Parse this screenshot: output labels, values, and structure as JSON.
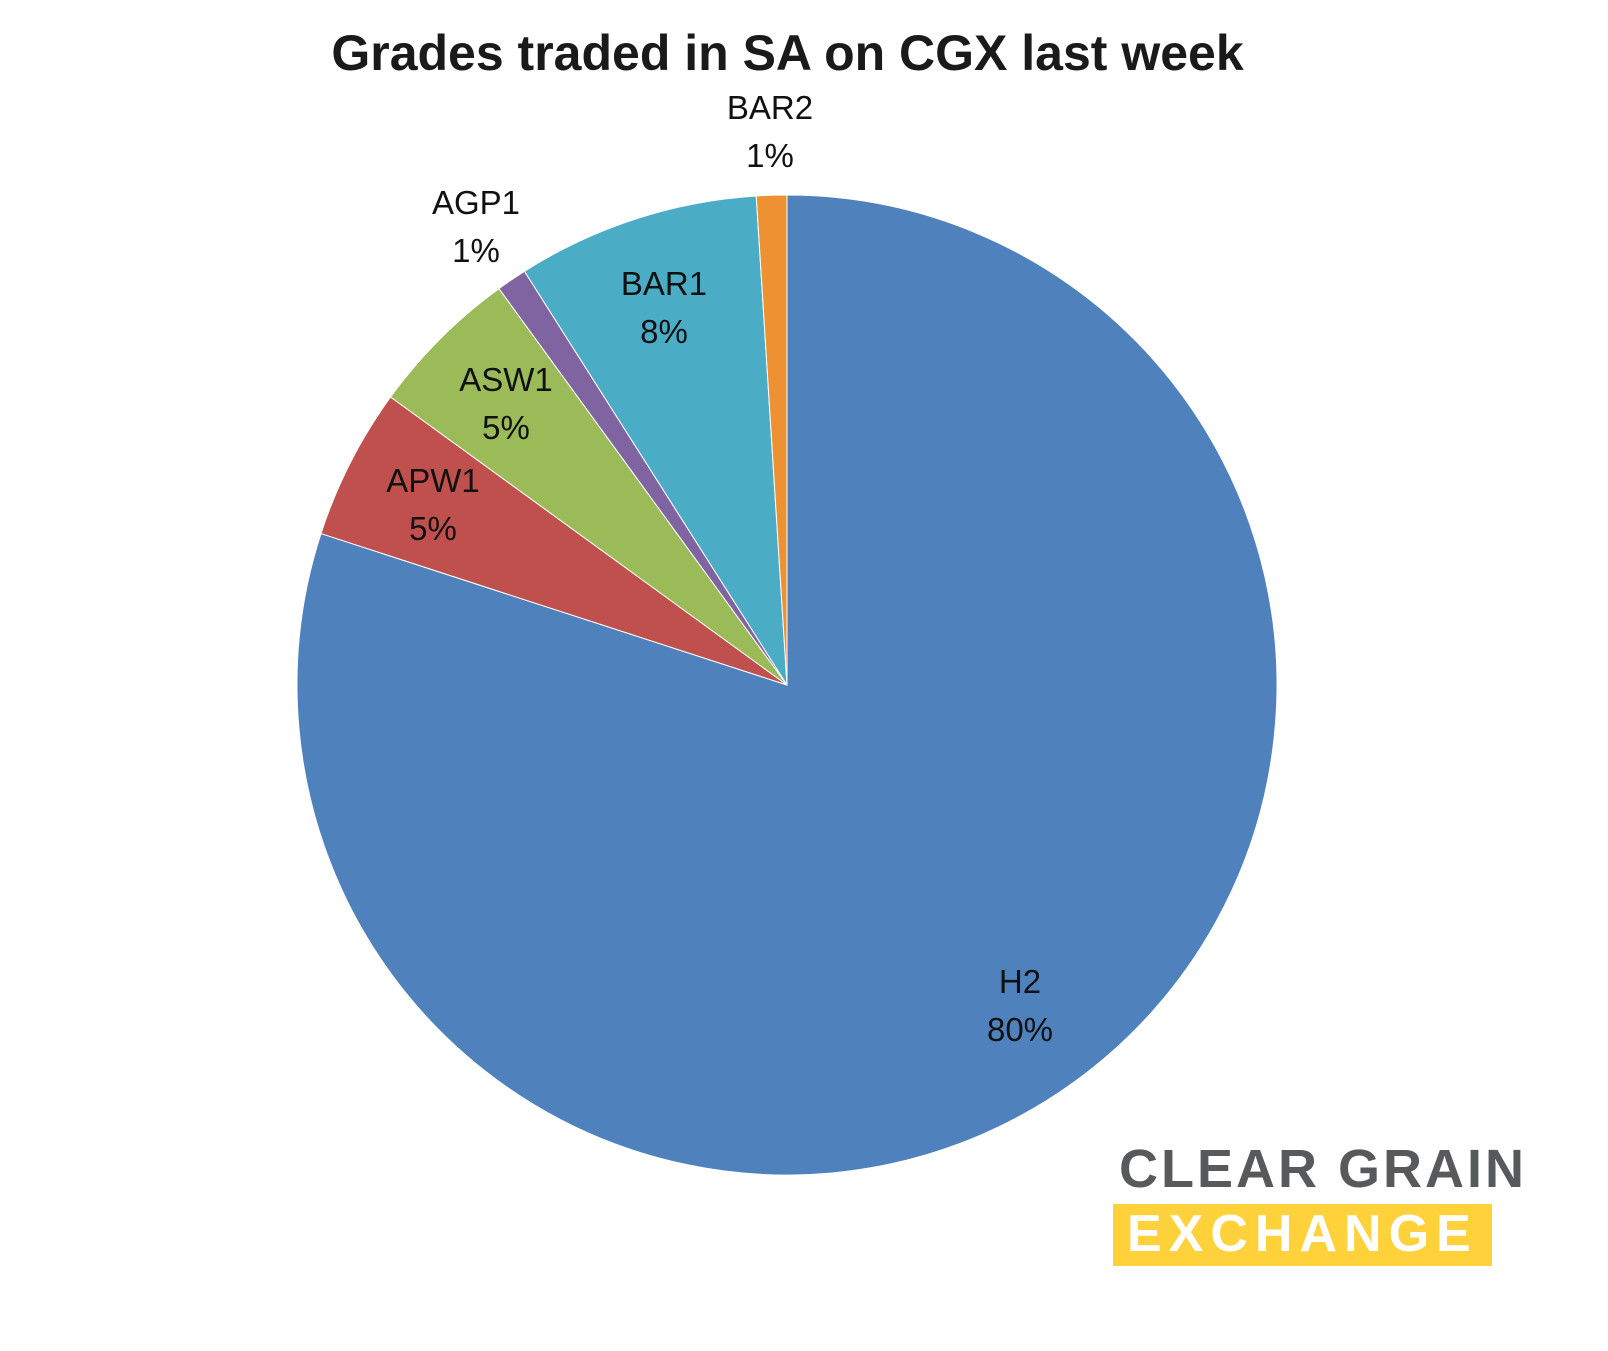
{
  "title": "Grades traded in SA on CGX last week",
  "chart_data": {
    "type": "pie",
    "title": "Grades traded in SA on CGX last week",
    "start_angle_deg": 0,
    "direction": "clockwise",
    "legend": "none",
    "label_format": "category name + percentage",
    "slices": [
      {
        "label": "H2",
        "value": 80,
        "display": "80%",
        "color": "#4F81BD"
      },
      {
        "label": "APW1",
        "value": 5,
        "display": "5%",
        "color": "#C0504D"
      },
      {
        "label": "ASW1",
        "value": 5,
        "display": "5%",
        "color": "#9BBB59"
      },
      {
        "label": "AGP1",
        "value": 1,
        "display": "1%",
        "color": "#8064A2"
      },
      {
        "label": "BAR1",
        "value": 8,
        "display": "8%",
        "color": "#4BACC6"
      },
      {
        "label": "BAR2",
        "value": 1,
        "display": "1%",
        "color": "#ED9133"
      }
    ]
  },
  "logo": {
    "line1": "CLEAR GRAIN",
    "line2": "EXCHANGE",
    "text_color": "#58595B",
    "accent_color": "#FFD13B"
  }
}
